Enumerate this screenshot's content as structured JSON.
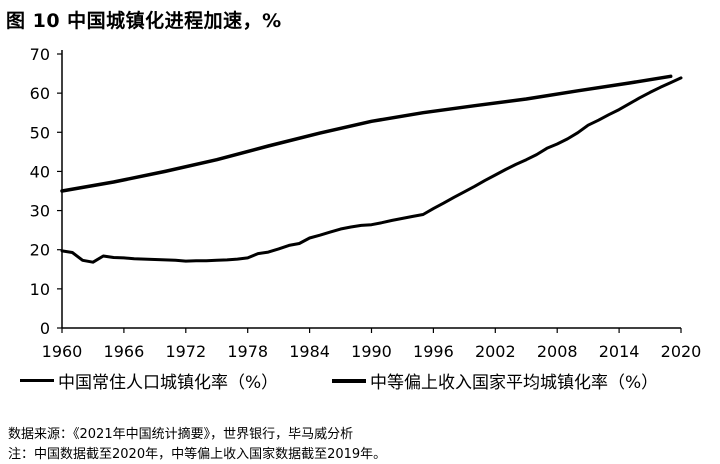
{
  "title": "图 10  中国城镇化进程加速，%",
  "chart_data": {
    "type": "line",
    "xlim": [
      1960,
      2020
    ],
    "ylim": [
      0,
      70
    ],
    "x_ticks": [
      1960,
      1966,
      1972,
      1978,
      1984,
      1990,
      1996,
      2002,
      2008,
      2014,
      2020
    ],
    "y_ticks": [
      0,
      10,
      20,
      30,
      40,
      50,
      60,
      70
    ],
    "grid": false,
    "legend_position": "bottom",
    "series": [
      {
        "name": "中国常住人口城镇化率（%）",
        "color": "#000000",
        "x": [
          1960,
          1961,
          1962,
          1963,
          1964,
          1965,
          1966,
          1967,
          1968,
          1969,
          1970,
          1971,
          1972,
          1973,
          1974,
          1975,
          1976,
          1977,
          1978,
          1979,
          1980,
          1981,
          1982,
          1983,
          1984,
          1985,
          1986,
          1987,
          1988,
          1989,
          1990,
          1991,
          1992,
          1993,
          1994,
          1995,
          1996,
          1997,
          1998,
          1999,
          2000,
          2001,
          2002,
          2003,
          2004,
          2005,
          2006,
          2007,
          2008,
          2009,
          2010,
          2011,
          2012,
          2013,
          2014,
          2015,
          2016,
          2017,
          2018,
          2019,
          2020
        ],
        "values": [
          19.7,
          19.3,
          17.3,
          16.8,
          18.4,
          18.0,
          17.9,
          17.7,
          17.6,
          17.5,
          17.4,
          17.3,
          17.1,
          17.2,
          17.2,
          17.3,
          17.4,
          17.6,
          17.9,
          19.0,
          19.4,
          20.2,
          21.1,
          21.6,
          23.0,
          23.7,
          24.5,
          25.3,
          25.8,
          26.2,
          26.4,
          26.9,
          27.5,
          28.0,
          28.5,
          29.0,
          30.5,
          31.9,
          33.4,
          34.8,
          36.2,
          37.7,
          39.1,
          40.5,
          41.8,
          43.0,
          44.3,
          45.9,
          47.0,
          48.3,
          49.9,
          51.8,
          53.1,
          54.5,
          55.8,
          57.3,
          58.8,
          60.2,
          61.5,
          62.7,
          63.9
        ]
      },
      {
        "name": "中等偏上收入国家平均城镇化率（%）",
        "color": "#000000",
        "x": [
          1960,
          1965,
          1970,
          1975,
          1980,
          1985,
          1990,
          1995,
          2000,
          2005,
          2010,
          2015,
          2019
        ],
        "values": [
          35.0,
          37.3,
          40.0,
          43.0,
          46.5,
          49.8,
          52.8,
          55.0,
          56.8,
          58.5,
          60.6,
          62.6,
          64.3
        ]
      }
    ]
  },
  "notes": [
    "数据来源：《2021年中国统计摘要》，世界银行，毕马威分析",
    "注：中国数据截至2020年，中等偏上收入国家数据截至2019年。"
  ]
}
